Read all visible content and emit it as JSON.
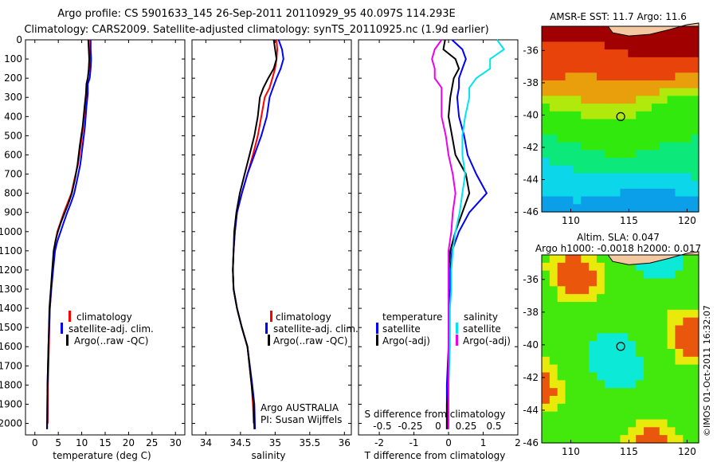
{
  "header": {
    "line1": "Argo profile: CS 5901633_145 26-Sep-2011 20110929_95 40.097S 114.293E",
    "line2": "Climatology: CARS2009. Satellite-adjusted climatology: synTS_20110925.nc (1.9d earlier)"
  },
  "colors": {
    "climatology": "#ff0000",
    "satellite": "#0000ff",
    "argo": "#000000",
    "satellite_salinity": "#00e5ee",
    "argo_salinity": "#ee00ee",
    "land": "#f4c8a0"
  },
  "chart_data": [
    {
      "type": "line",
      "id": "temperature",
      "xlabel": "temperature (deg C)",
      "xlim": [
        -2,
        32
      ],
      "ylim": [
        2060,
        0
      ],
      "xticks": [
        "0",
        "5",
        "10",
        "15",
        "20",
        "25",
        "30"
      ],
      "yticks": [
        "0",
        "100",
        "200",
        "300",
        "400",
        "500",
        "600",
        "700",
        "800",
        "900",
        "1000",
        "1100",
        "1200",
        "1300",
        "1400",
        "1500",
        "1600",
        "1700",
        "1800",
        "1900",
        "2000"
      ],
      "legend": [
        "climatology",
        "satellite-adj. clim.",
        "Argo(..raw -QC)"
      ],
      "series": [
        {
          "name": "climatology",
          "x": [
            11.8,
            11.8,
            11.7,
            11.6,
            11.3,
            11.0,
            11.0,
            10.7,
            10.3,
            9.8,
            9.2,
            8.5,
            7.8,
            7.0,
            6.2,
            5.5,
            4.8,
            4.4,
            4.1,
            3.8,
            3.5,
            3.2,
            3.0,
            2.8,
            2.75
          ],
          "y": [
            0,
            50,
            100,
            150,
            200,
            230,
            280,
            350,
            450,
            550,
            650,
            720,
            800,
            850,
            900,
            950,
            1000,
            1050,
            1100,
            1200,
            1300,
            1400,
            1600,
            1800,
            2000
          ]
        },
        {
          "name": "satellite-adj. clim.",
          "x": [
            11.9,
            11.9,
            12.0,
            11.9,
            11.7,
            11.3,
            11.3,
            11.0,
            10.7,
            10.2,
            9.7,
            9.1,
            8.4,
            7.7,
            6.9,
            6.2,
            5.5,
            4.8,
            4.3,
            3.9,
            3.5,
            3.2,
            2.9,
            2.7,
            2.6
          ],
          "y": [
            0,
            50,
            100,
            150,
            200,
            230,
            280,
            350,
            450,
            550,
            650,
            720,
            800,
            850,
            900,
            950,
            1000,
            1050,
            1100,
            1200,
            1300,
            1400,
            1600,
            1800,
            2030
          ]
        },
        {
          "name": "Argo(..raw -QC)",
          "x": [
            11.4,
            11.5,
            11.6,
            11.5,
            11.3,
            11.0,
            10.9,
            10.6,
            10.2,
            9.6,
            9.1,
            8.6,
            7.9,
            7.2,
            6.4,
            5.6,
            4.9,
            4.4,
            4.0,
            3.7,
            3.4,
            3.1,
            2.9,
            2.7,
            2.6
          ],
          "y": [
            0,
            50,
            100,
            150,
            200,
            230,
            280,
            350,
            450,
            550,
            650,
            720,
            800,
            850,
            900,
            950,
            1000,
            1050,
            1100,
            1200,
            1300,
            1400,
            1600,
            1800,
            2030
          ]
        }
      ]
    },
    {
      "type": "line",
      "id": "salinity",
      "xlabel": "salinity",
      "xlim": [
        33.8,
        36.1
      ],
      "ylim": [
        2060,
        0
      ],
      "xticks": [
        "34",
        "34.5",
        "35",
        "35.5",
        "36"
      ],
      "legend": [
        "climatology",
        "satellite-adj. clim.",
        "Argo(..raw -QC)"
      ],
      "annotation": [
        "Argo AUSTRALIA",
        "PI: Susan Wijffels"
      ],
      "series": [
        {
          "name": "climatology",
          "x": [
            35.02,
            35.03,
            35.02,
            35.0,
            34.96,
            34.92,
            34.85,
            34.8,
            34.75,
            34.68,
            34.6,
            34.52,
            34.45,
            34.42,
            34.4,
            34.39,
            34.4,
            34.45,
            34.52,
            34.6,
            34.66,
            34.68,
            34.69
          ],
          "y": [
            0,
            50,
            100,
            150,
            200,
            250,
            300,
            400,
            500,
            600,
            700,
            800,
            900,
            1000,
            1100,
            1200,
            1300,
            1400,
            1500,
            1600,
            1800,
            1900,
            2000
          ]
        },
        {
          "name": "satellite-adj. clim.",
          "x": [
            35.05,
            35.1,
            35.12,
            35.08,
            35.02,
            34.97,
            34.92,
            34.88,
            34.8,
            34.7,
            34.6,
            34.52,
            34.45,
            34.42,
            34.4,
            34.39,
            34.4,
            34.45,
            34.52,
            34.6,
            34.67,
            34.7,
            34.71
          ],
          "y": [
            0,
            50,
            100,
            150,
            200,
            250,
            300,
            400,
            500,
            600,
            700,
            800,
            900,
            1000,
            1100,
            1200,
            1300,
            1400,
            1500,
            1600,
            1800,
            1900,
            2030
          ]
        },
        {
          "name": "Argo(..raw -QC)",
          "x": [
            34.98,
            35.0,
            35.02,
            34.98,
            34.9,
            34.83,
            34.78,
            34.75,
            34.7,
            34.63,
            34.56,
            34.49,
            34.44,
            34.41,
            34.4,
            34.39,
            34.4,
            34.45,
            34.52,
            34.6,
            34.66,
            34.69,
            34.7
          ],
          "y": [
            0,
            50,
            100,
            150,
            200,
            250,
            300,
            400,
            500,
            600,
            700,
            800,
            900,
            1000,
            1100,
            1200,
            1300,
            1400,
            1500,
            1600,
            1800,
            1900,
            2030
          ]
        }
      ]
    },
    {
      "type": "line",
      "id": "difference",
      "xlabel": "T difference from climatology",
      "xlabel_top": "S difference from climatology",
      "xlim": [
        -2.6,
        2.0
      ],
      "ylim": [
        2060,
        0
      ],
      "xticks": [
        "-2",
        "-1",
        "0",
        "1",
        "2"
      ],
      "xticks_top": [
        "-0.5",
        "-0.25",
        "0",
        "0.25",
        "0.5"
      ],
      "legend_t_title": "temperature",
      "legend_s_title": "salinity",
      "legend_t": [
        "satellite",
        "Argo(-adj)"
      ],
      "legend_s": [
        "satellite",
        "Argo(-adj)"
      ],
      "series": [
        {
          "name": "temperature satellite",
          "x": [
            0.1,
            0.4,
            0.5,
            0.4,
            0.3,
            0.3,
            0.25,
            0.3,
            0.45,
            0.55,
            0.8,
            1.1,
            0.6,
            0.3,
            0.1,
            0.05,
            0.05,
            0.0,
            0.0,
            0.0,
            -0.05,
            -0.05,
            -0.05
          ],
          "y": [
            0,
            50,
            100,
            150,
            200,
            250,
            300,
            400,
            500,
            600,
            700,
            800,
            900,
            1000,
            1100,
            1200,
            1300,
            1400,
            1500,
            1600,
            1800,
            1900,
            2030
          ]
        },
        {
          "name": "temperature Argo(-adj)",
          "x": [
            -0.1,
            -0.15,
            0.2,
            0.3,
            0.15,
            0.1,
            0.05,
            0.0,
            0.1,
            0.2,
            0.5,
            0.6,
            0.4,
            0.2,
            0.05,
            0.0,
            0.0,
            0.0,
            0.0,
            0.0,
            0.0,
            -0.05,
            -0.05
          ],
          "y": [
            0,
            50,
            100,
            150,
            200,
            250,
            300,
            400,
            500,
            600,
            700,
            800,
            900,
            1000,
            1100,
            1200,
            1300,
            1400,
            1500,
            1600,
            1800,
            1900,
            2030
          ]
        },
        {
          "name": "salinity satellite",
          "x": [
            0.35,
            0.4,
            0.3,
            0.3,
            0.2,
            0.15,
            0.15,
            0.12,
            0.1,
            0.1,
            0.12,
            0.1,
            0.08,
            0.05,
            0.03,
            0.02,
            0.02,
            0.01,
            0.01,
            0.01,
            0.0,
            0.0,
            0.0
          ],
          "y": [
            0,
            50,
            100,
            150,
            200,
            250,
            300,
            400,
            500,
            600,
            700,
            800,
            900,
            1000,
            1100,
            1200,
            1300,
            1400,
            1500,
            1600,
            1800,
            1900,
            2030
          ]
        },
        {
          "name": "salinity Argo(-adj)",
          "x": [
            -0.05,
            -0.1,
            -0.12,
            -0.1,
            -0.1,
            -0.05,
            -0.05,
            -0.05,
            -0.02,
            0.0,
            0.03,
            0.05,
            0.03,
            0.02,
            0.0,
            0.0,
            0.0,
            0.0,
            0.0,
            0.0,
            0.0,
            0.0,
            0.0
          ],
          "y": [
            0,
            50,
            100,
            150,
            200,
            250,
            300,
            400,
            500,
            600,
            700,
            800,
            900,
            1000,
            1100,
            1200,
            1300,
            1400,
            1500,
            1600,
            1800,
            1900,
            2030
          ]
        }
      ]
    },
    {
      "type": "heatmap",
      "id": "sst_map",
      "title": "AMSR-E SST: 11.7 Argo: 11.6",
      "xlim": [
        107.5,
        121
      ],
      "ylim": [
        -46,
        -34.5
      ],
      "xticks": [
        "110",
        "115",
        "120"
      ],
      "yticks": [
        "-36",
        "-38",
        "-40",
        "-42",
        "-44",
        "-46"
      ],
      "marker": {
        "lon": 114.293,
        "lat": -40.097
      }
    },
    {
      "type": "heatmap",
      "id": "sla_map",
      "title_line1": "Altim. SLA: 0.047",
      "title_line2": "Argo h1000: -0.0018 h2000: 0.017",
      "xlim": [
        107.5,
        121
      ],
      "ylim": [
        -46,
        -34.5
      ],
      "xticks": [
        "110",
        "115",
        "120"
      ],
      "yticks": [
        "-36",
        "-38",
        "-40",
        "-42",
        "-44",
        "-46"
      ],
      "marker": {
        "lon": 114.293,
        "lat": -40.097
      }
    }
  ],
  "footer": {
    "credit": "©IMOS 01-Oct-2011 16:32:07"
  }
}
